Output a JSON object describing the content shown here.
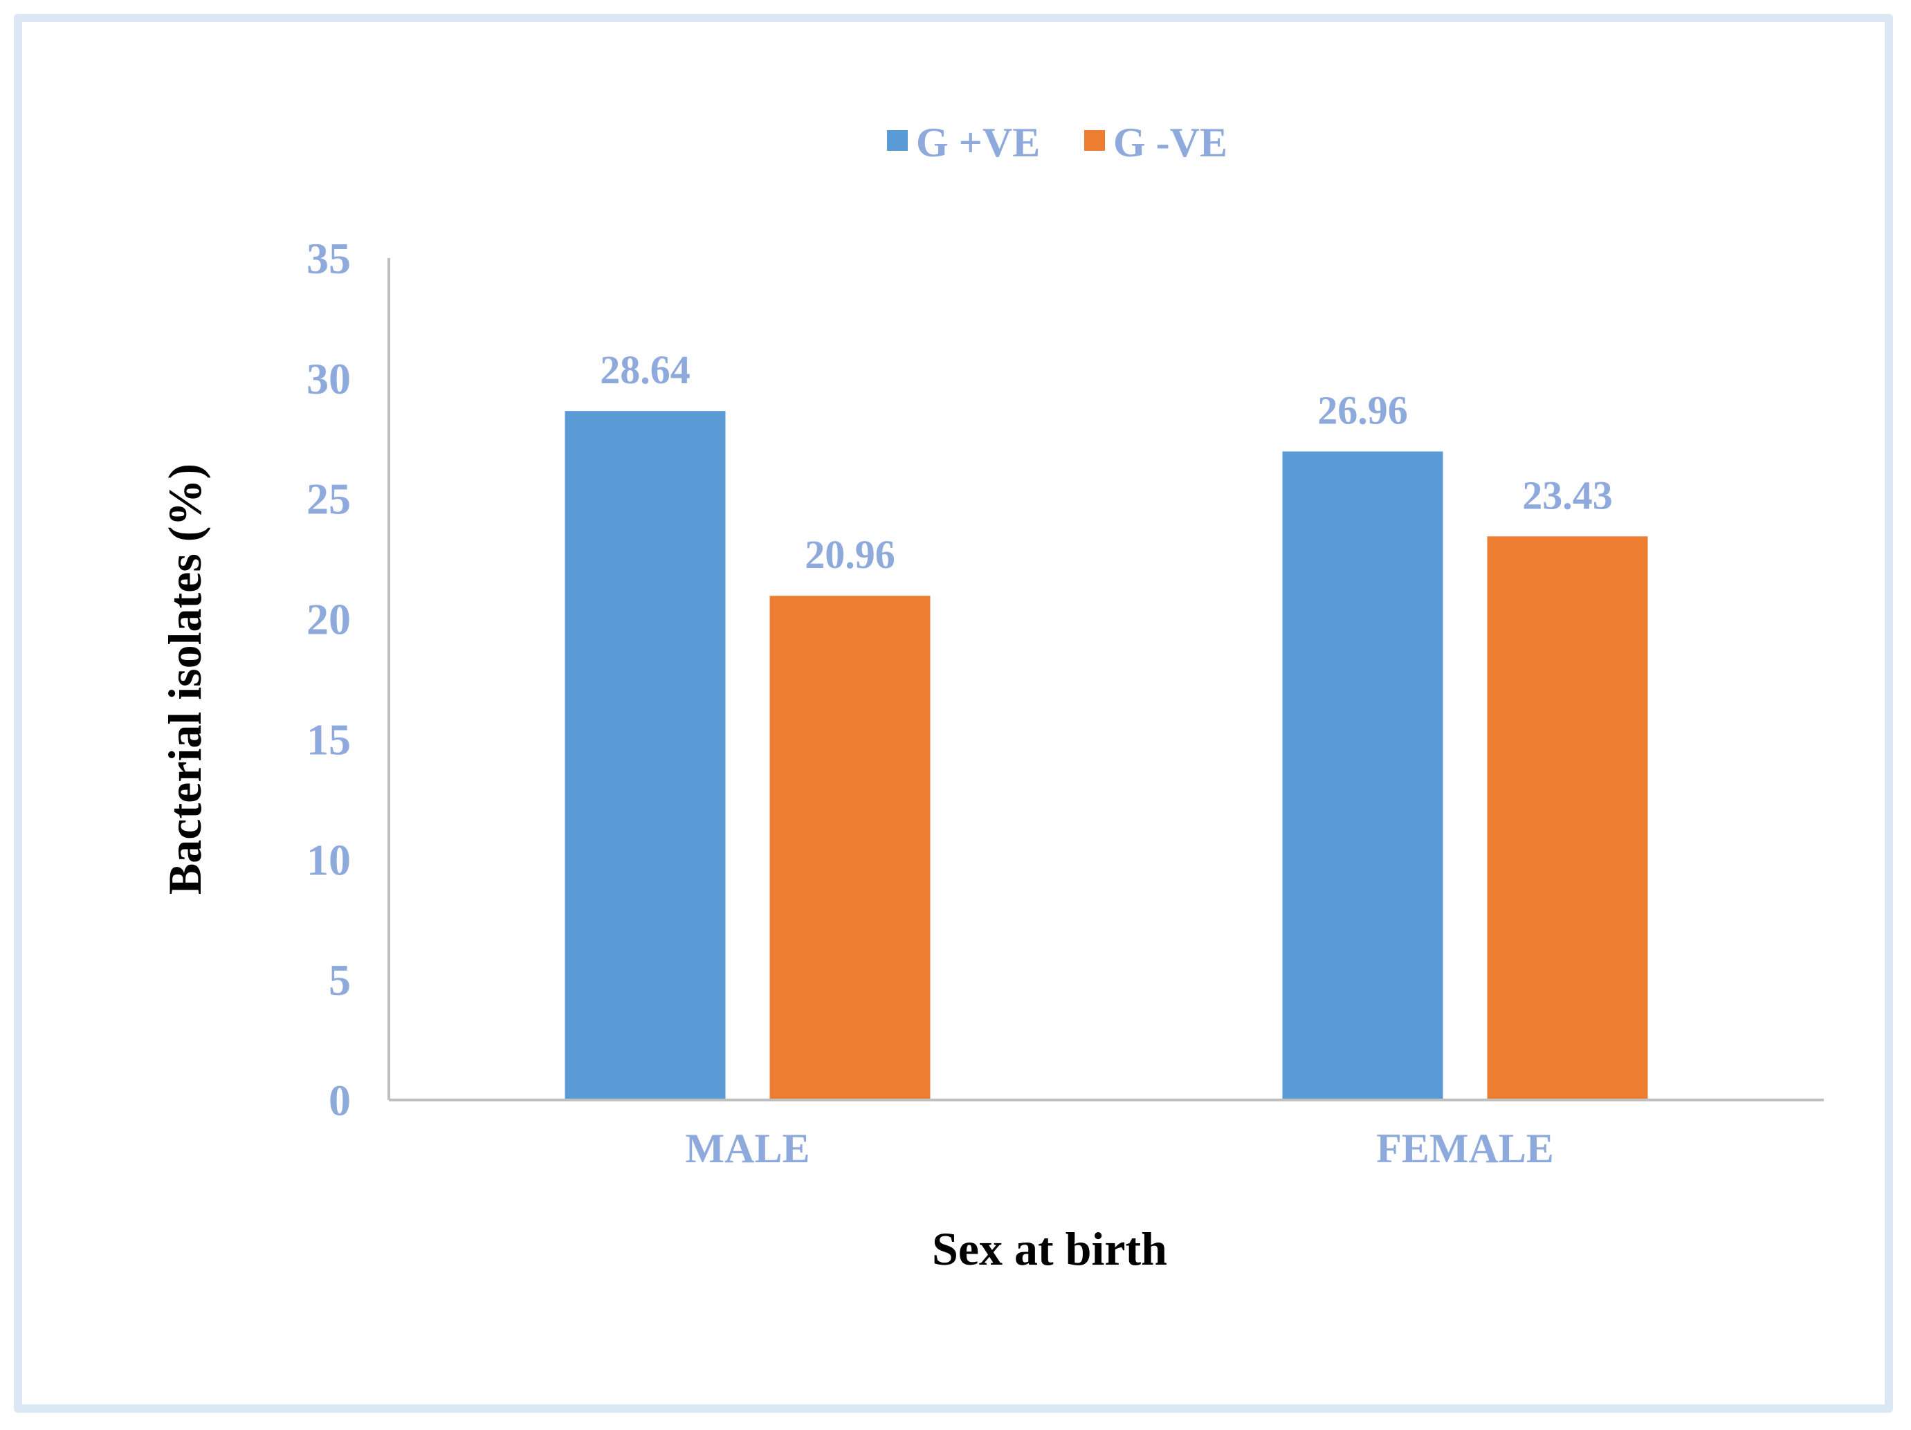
{
  "chart_data": {
    "type": "bar",
    "title": "",
    "categories": [
      "MALE",
      "FEMALE"
    ],
    "series": [
      {
        "name": "G +VE",
        "color": "#5b9bd5",
        "values": [
          28.64,
          26.96
        ]
      },
      {
        "name": "G -VE",
        "color": "#ed7d31",
        "values": [
          20.96,
          23.43
        ]
      }
    ],
    "xlabel": "Sex at birth",
    "ylabel": "Bacterial isolates (%)",
    "ylim": [
      0,
      35
    ],
    "yticks": [
      0,
      5,
      10,
      15,
      20,
      25,
      30,
      35
    ],
    "legend_position": "top-center",
    "grid": false
  }
}
